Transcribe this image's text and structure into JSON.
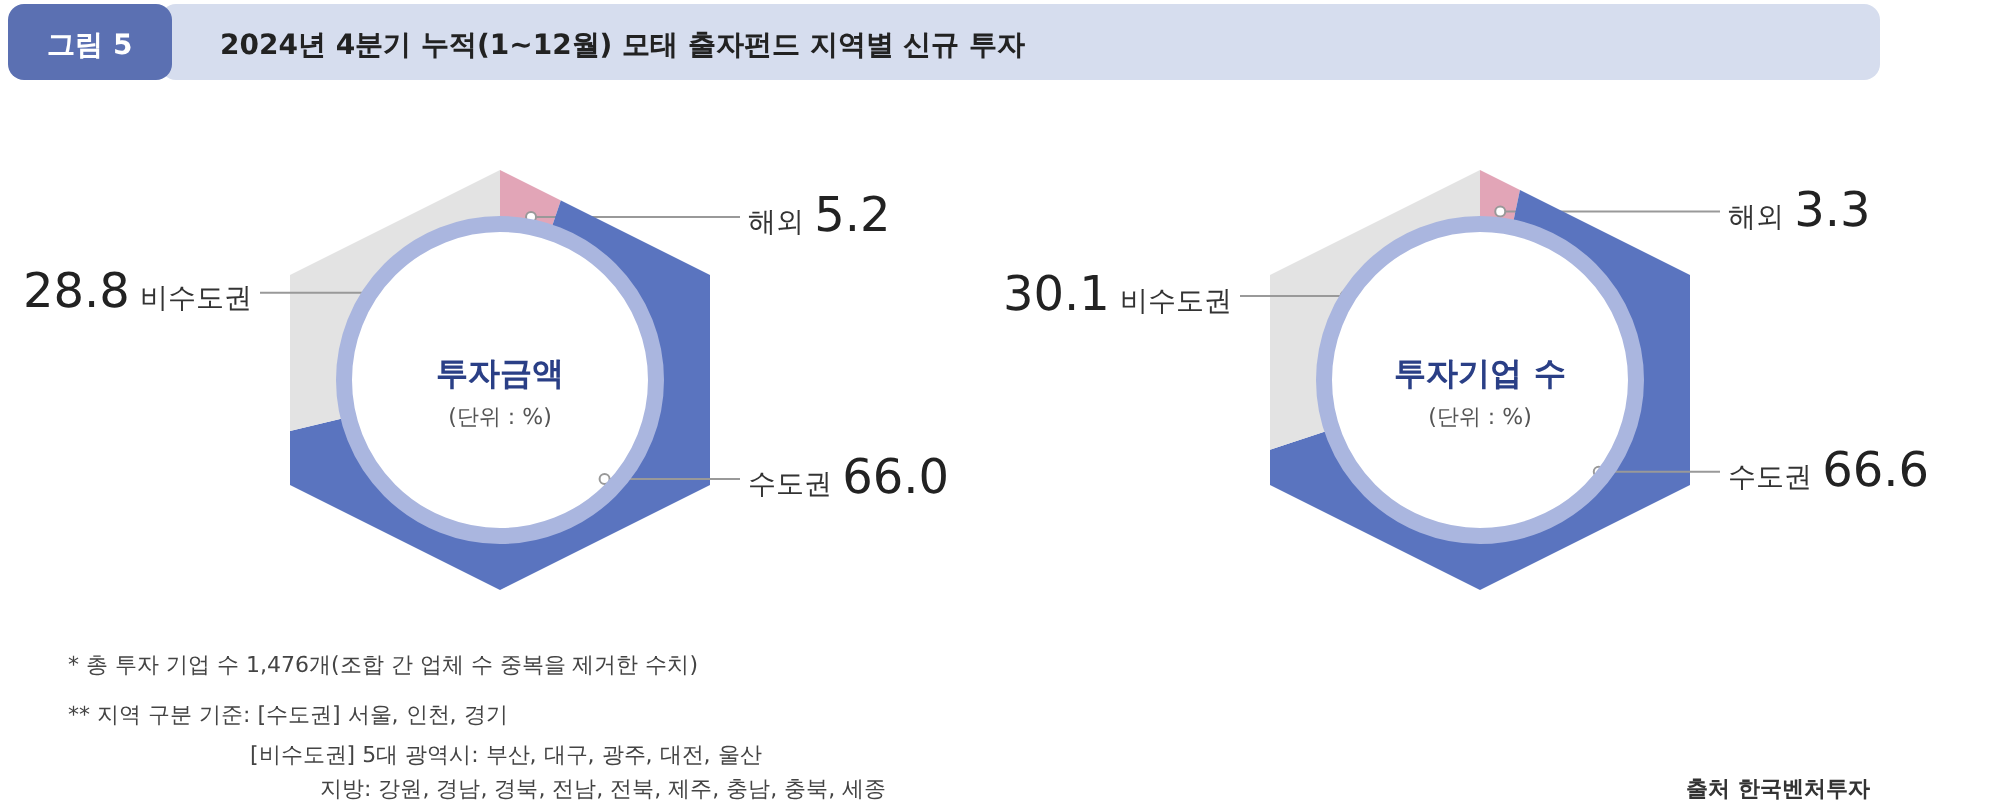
{
  "chart_data": [
    {
      "type": "donut",
      "title": "투자금액",
      "subtitle": "(단위 : %)",
      "categories": [
        "해외",
        "수도권",
        "비수도권"
      ],
      "values": [
        5.2,
        66.0,
        28.8
      ],
      "colors": [
        "#e2a5b7",
        "#5a74bf",
        "#e3e3e3"
      ],
      "value_labels": [
        "5.2",
        "66.0",
        "28.8"
      ],
      "annotations": [
        "그림 5",
        "2024년 4분기 누적(1~12월) 모태 출자펀드 지역별 신규 투자",
        "*  총 투자 기업 수 1,476개(조합 간 업체 수 중복을 제거한 수치)",
        "**  지역 구분 기준: [수도권] 서울, 인천, 경기",
        "[비수도권] 5대 광역시: 부산, 대구, 광주, 대전, 울산",
        "지방: 강원, 경남, 경북, 전남, 전북, 제주, 충남, 충북, 세종"
      ]
    },
    {
      "type": "donut",
      "title": "투자기업 수",
      "subtitle": "(단위 : %)",
      "categories": [
        "해외",
        "수도권",
        "비수도권"
      ],
      "values": [
        3.3,
        66.6,
        30.1
      ],
      "colors": [
        "#e2a5b7",
        "#5a74bf",
        "#e3e3e3"
      ],
      "value_labels": [
        "3.3",
        "66.6",
        "30.1"
      ],
      "annotations": [
        "출처 한국벤처투자"
      ]
    }
  ]
}
